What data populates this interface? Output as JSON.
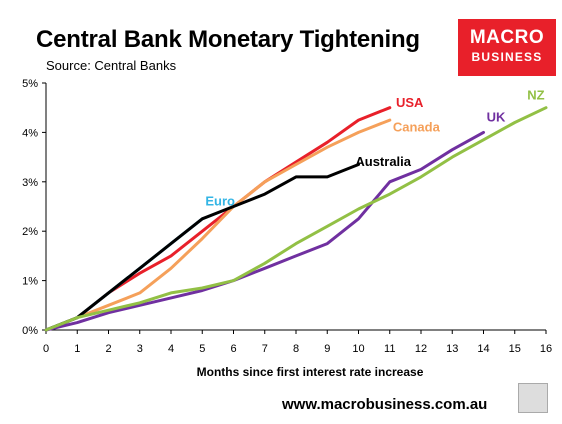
{
  "header": {
    "title": "Central Bank Monetary Tightening",
    "subtitle": "Source: Central Banks"
  },
  "logo": {
    "line1": "MACRO",
    "line2": "BUSINESS",
    "color": "#e8202a"
  },
  "footer": {
    "url": "www.macrobusiness.com.au"
  },
  "chart_data": {
    "type": "line",
    "title": "Central Bank Monetary Tightening",
    "xlabel": "Months since first interest rate increase",
    "ylabel": "",
    "xlim": [
      0,
      16
    ],
    "ylim": [
      0,
      5
    ],
    "x_ticks": [
      "0",
      "1",
      "2",
      "3",
      "4",
      "5",
      "6",
      "7",
      "8",
      "9",
      "10",
      "11",
      "12",
      "13",
      "14",
      "15",
      "16"
    ],
    "y_ticks": [
      "0%",
      "1%",
      "2%",
      "3%",
      "4%",
      "5%"
    ],
    "grid": false,
    "series": [
      {
        "name": "USA",
        "color": "#e8202a",
        "x": [
          0,
          1,
          2,
          3,
          4,
          5,
          6,
          7,
          8,
          9,
          10,
          11
        ],
        "y": [
          0,
          0.25,
          0.75,
          1.15,
          1.5,
          2.0,
          2.5,
          3.0,
          3.4,
          3.8,
          4.25,
          4.5
        ]
      },
      {
        "name": "Canada",
        "color": "#f5a05a",
        "x": [
          0,
          1,
          2,
          3,
          4,
          5,
          6,
          7,
          8,
          9,
          10,
          11
        ],
        "y": [
          0,
          0.25,
          0.5,
          0.75,
          1.25,
          1.85,
          2.5,
          3.0,
          3.35,
          3.7,
          4.0,
          4.25
        ]
      },
      {
        "name": "Euro",
        "color": "#33b5e5",
        "x": [
          0,
          1,
          2,
          3,
          4,
          5
        ],
        "y": [
          0,
          0.25,
          0.75,
          1.25,
          1.75,
          2.25
        ]
      },
      {
        "name": "Australia",
        "color": "#000000",
        "x": [
          0,
          1,
          2,
          3,
          4,
          5,
          6,
          7,
          8,
          9,
          10
        ],
        "y": [
          0,
          0.25,
          0.75,
          1.25,
          1.75,
          2.25,
          2.5,
          2.75,
          3.1,
          3.1,
          3.35
        ]
      },
      {
        "name": "UK",
        "color": "#7030a0",
        "x": [
          0,
          1,
          2,
          3,
          4,
          5,
          6,
          7,
          8,
          9,
          10,
          11,
          12,
          13,
          14
        ],
        "y": [
          0,
          0.15,
          0.35,
          0.5,
          0.65,
          0.8,
          1.0,
          1.25,
          1.5,
          1.75,
          2.25,
          3.0,
          3.25,
          3.65,
          4.0
        ]
      },
      {
        "name": "NZ",
        "color": "#92c045",
        "x": [
          0,
          1,
          2,
          3,
          4,
          5,
          6,
          7,
          8,
          9,
          10,
          11,
          12,
          13,
          14,
          15,
          16
        ],
        "y": [
          0,
          0.25,
          0.4,
          0.55,
          0.75,
          0.85,
          1.0,
          1.35,
          1.75,
          2.1,
          2.45,
          2.75,
          3.1,
          3.5,
          3.85,
          4.2,
          4.5
        ]
      }
    ],
    "annotations": [
      {
        "text": "USA",
        "color": "#e8202a",
        "x": 11.2,
        "y": 4.6
      },
      {
        "text": "Canada",
        "color": "#f5a05a",
        "x": 11.1,
        "y": 4.1
      },
      {
        "text": "Euro",
        "color": "#33b5e5",
        "x": 5.1,
        "y": 2.6
      },
      {
        "text": "Australia",
        "color": "#000000",
        "x": 9.9,
        "y": 3.4
      },
      {
        "text": "UK",
        "color": "#7030a0",
        "x": 14.1,
        "y": 4.3
      },
      {
        "text": "NZ",
        "color": "#92c045",
        "x": 15.4,
        "y": 4.75
      }
    ]
  }
}
